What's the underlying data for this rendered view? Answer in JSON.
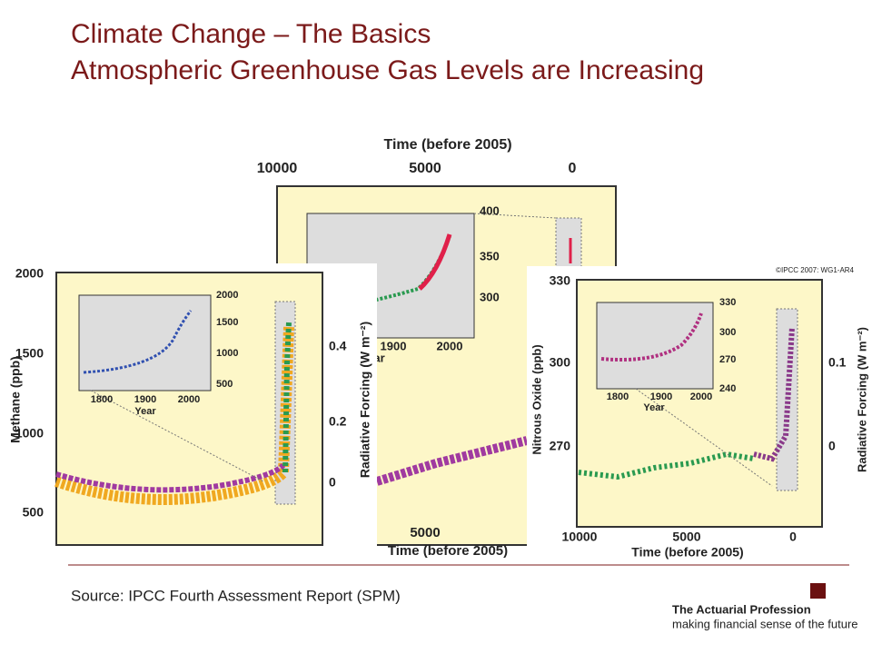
{
  "header": {
    "title": "Climate Change – The Basics",
    "subtitle": "Atmospheric Greenhouse Gas Levels are Increasing"
  },
  "figures": {
    "co2": {
      "time_label": "Time (before 2005)",
      "top_ticks": [
        "10000",
        "5000",
        "0"
      ],
      "inset_y_ticks": [
        "400",
        "350",
        "300"
      ],
      "inset_x_ticks": [
        "1900",
        "2000"
      ],
      "inset_x_label": "Year",
      "bottom_tick": "5000",
      "bottom_label": "Time (before 2005)"
    },
    "methane": {
      "y_label": "Methane (ppb)",
      "y_ticks": [
        "2000",
        "1500",
        "1000",
        "500"
      ],
      "y2_label": "Radiative Forcing (W m⁻²)",
      "y2_ticks": [
        "0.4",
        "0.2",
        "0"
      ],
      "inset_y_ticks": [
        "2000",
        "1500",
        "1000",
        "500"
      ],
      "inset_x_ticks": [
        "1800",
        "1900",
        "2000"
      ],
      "inset_x_label": "Year"
    },
    "nitrous": {
      "copyright": "©IPCC 2007: WG1-AR4",
      "y_label": "Nitrous Oxide (ppb)",
      "y_ticks": [
        "330",
        "300",
        "270"
      ],
      "y2_label": "Radiative Forcing (W m⁻²)",
      "y2_ticks": [
        "0.1",
        "0"
      ],
      "inset_y_ticks": [
        "330",
        "300",
        "270",
        "240"
      ],
      "inset_x_ticks": [
        "1800",
        "1900",
        "2000"
      ],
      "inset_x_label": "Year",
      "x_ticks": [
        "10000",
        "5000",
        "0"
      ],
      "x_label": "Time (before 2005)"
    }
  },
  "footer": {
    "source": "Source: IPCC Fourth Assessment Report (SPM)",
    "org": "The Actuarial Profession",
    "tagline": "making financial sense of the future"
  }
}
